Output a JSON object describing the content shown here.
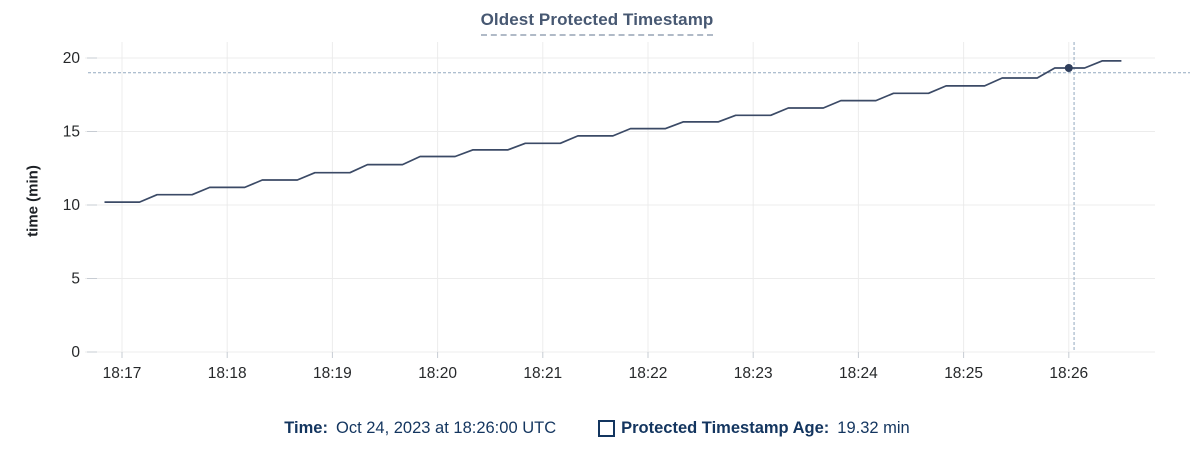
{
  "chart_data": {
    "type": "line",
    "title": "Oldest Protected Timestamp",
    "xlabel": "",
    "ylabel": "time (min)",
    "x_ticks": [
      "18:17",
      "18:18",
      "18:19",
      "18:20",
      "18:21",
      "18:22",
      "18:23",
      "18:24",
      "18:25",
      "18:26"
    ],
    "y_ticks": [
      0,
      5,
      10,
      15,
      20
    ],
    "ylim": [
      0,
      20
    ],
    "x_domain": [
      "18:16:42",
      "18:27:06"
    ],
    "grid": true,
    "legend_position": "bottom",
    "series": [
      {
        "name": "Protected Timestamp Age",
        "unit": "min",
        "points": [
          [
            "18:16:50",
            10.2
          ],
          [
            "18:17:10",
            10.2
          ],
          [
            "18:17:20",
            10.7
          ],
          [
            "18:17:40",
            10.7
          ],
          [
            "18:17:50",
            11.2
          ],
          [
            "18:18:10",
            11.2
          ],
          [
            "18:18:20",
            11.7
          ],
          [
            "18:18:40",
            11.7
          ],
          [
            "18:18:50",
            12.2
          ],
          [
            "18:19:10",
            12.2
          ],
          [
            "18:19:20",
            12.75
          ],
          [
            "18:19:40",
            12.75
          ],
          [
            "18:19:50",
            13.3
          ],
          [
            "18:20:10",
            13.3
          ],
          [
            "18:20:20",
            13.75
          ],
          [
            "18:20:40",
            13.75
          ],
          [
            "18:20:50",
            14.2
          ],
          [
            "18:21:10",
            14.2
          ],
          [
            "18:21:20",
            14.7
          ],
          [
            "18:21:40",
            14.7
          ],
          [
            "18:21:50",
            15.2
          ],
          [
            "18:22:10",
            15.2
          ],
          [
            "18:22:20",
            15.65
          ],
          [
            "18:22:40",
            15.65
          ],
          [
            "18:22:50",
            16.1
          ],
          [
            "18:23:10",
            16.1
          ],
          [
            "18:23:20",
            16.6
          ],
          [
            "18:23:40",
            16.6
          ],
          [
            "18:23:50",
            17.1
          ],
          [
            "18:24:10",
            17.1
          ],
          [
            "18:24:20",
            17.6
          ],
          [
            "18:24:40",
            17.6
          ],
          [
            "18:24:50",
            18.1
          ],
          [
            "18:25:12",
            18.1
          ],
          [
            "18:25:22",
            18.64
          ],
          [
            "18:25:42",
            18.64
          ],
          [
            "18:25:52",
            19.32
          ],
          [
            "18:26:09",
            19.32
          ],
          [
            "18:26:19",
            19.8
          ],
          [
            "18:26:30",
            19.8
          ]
        ]
      }
    ],
    "hover": {
      "time": "18:26:00",
      "value": 19.32,
      "crosshair_time": "18:26:03",
      "crosshair_value": 19.0
    }
  },
  "legend": {
    "time_prefix": "Time:",
    "time_value": "Oct 24, 2023 at 18:26:00 UTC",
    "series_label": "Protected Timestamp Age:",
    "series_value": "19.32 min"
  },
  "colors": {
    "title": "#475872",
    "title_underline": "#b0bac7",
    "line": "#3b4a66",
    "dot": "#2f3e5c",
    "grid": "#ececec",
    "tick_stub": "#c7ccd3",
    "tick_text": "#26282a",
    "legend_text": "#13355f",
    "crosshair": "#93a9bf"
  }
}
